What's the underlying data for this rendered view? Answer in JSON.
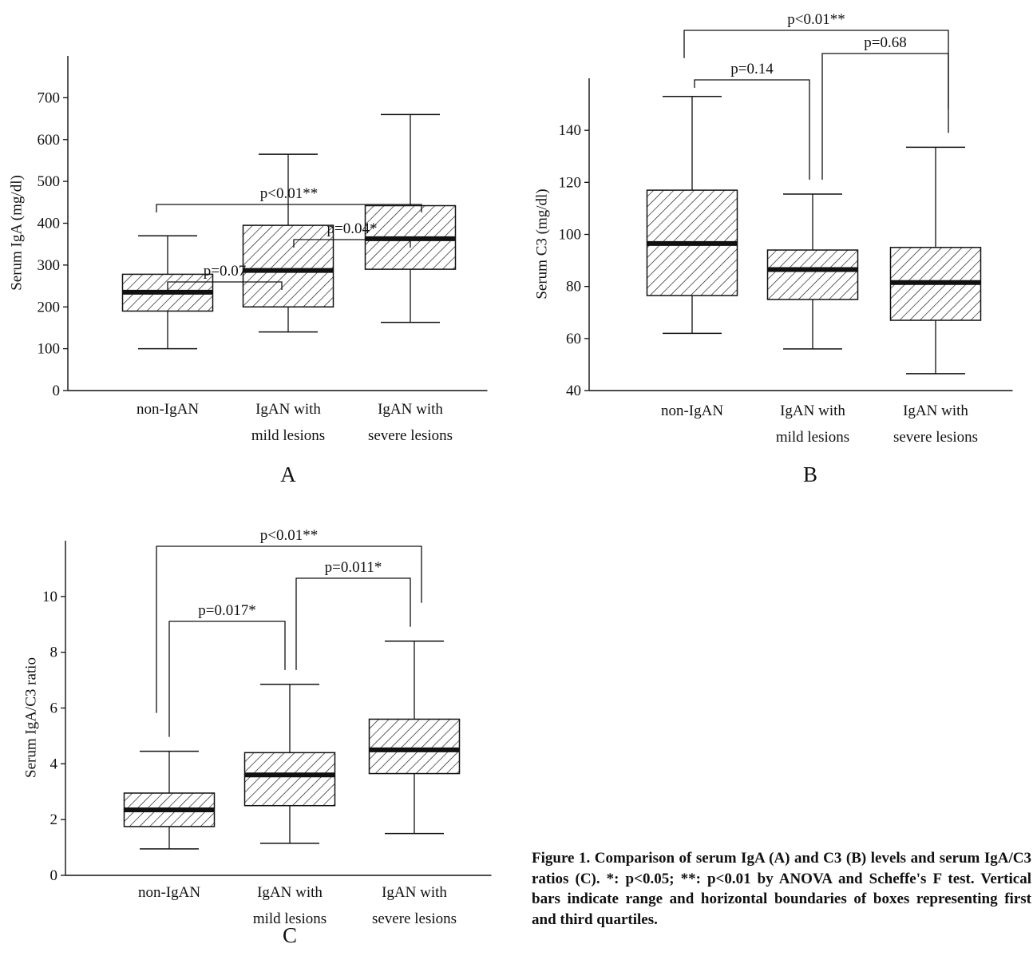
{
  "caption": "Figure 1.  Comparison of serum IgA (A) and C3 (B) levels and serum IgA/C3 ratios (C). *: p<0.05; **: p<0.01 by ANOVA and Scheffe's F test. Vertical bars indicate range and horizontal boundaries of boxes representing first and third quartiles.",
  "chart_data": [
    {
      "panel": "A",
      "type": "box",
      "ylabel": "Serum IgA (mg/dl)",
      "ylim": [
        0,
        800
      ],
      "yticks": [
        0,
        100,
        200,
        300,
        400,
        500,
        600,
        700
      ],
      "categories": [
        [
          "non-IgAN"
        ],
        [
          "IgAN with",
          "mild lesions"
        ],
        [
          "IgAN with",
          "severe lesions"
        ]
      ],
      "boxes": [
        {
          "min": 100,
          "q1": 190,
          "median": 235,
          "q3": 278,
          "max": 370
        },
        {
          "min": 140,
          "q1": 200,
          "median": 287,
          "q3": 395,
          "max": 565
        },
        {
          "min": 163,
          "q1": 290,
          "median": 363,
          "q3": 442,
          "max": 660
        }
      ],
      "comparisons": [
        {
          "from": 0,
          "to": 1,
          "label": "p=0.07"
        },
        {
          "from": 1,
          "to": 2,
          "label": "p=0.04*"
        },
        {
          "from": 0,
          "to": 2,
          "label": "p<0.01**"
        }
      ]
    },
    {
      "panel": "B",
      "type": "box",
      "ylabel": "Serum C3 (mg/dl)",
      "ylim": [
        40,
        160
      ],
      "yticks": [
        40,
        60,
        80,
        100,
        120,
        140
      ],
      "categories": [
        [
          "non-IgAN"
        ],
        [
          "IgAN with",
          "mild lesions"
        ],
        [
          "IgAN with",
          "severe lesions"
        ]
      ],
      "boxes": [
        {
          "min": 62,
          "q1": 76.5,
          "median": 96.5,
          "q3": 117,
          "max": 153
        },
        {
          "min": 56,
          "q1": 75,
          "median": 86.5,
          "q3": 94,
          "max": 115.5
        },
        {
          "min": 46.5,
          "q1": 67,
          "median": 81.5,
          "q3": 95,
          "max": 133.5
        }
      ],
      "comparisons": [
        {
          "from": 0,
          "to": 1,
          "label": "p=0.14"
        },
        {
          "from": 1,
          "to": 2,
          "label": "p=0.68"
        },
        {
          "from": 0,
          "to": 2,
          "label": "p<0.01**"
        }
      ]
    },
    {
      "panel": "C",
      "type": "box",
      "ylabel": "Serum IgA/C3 ratio",
      "ylim": [
        0,
        12
      ],
      "yticks": [
        0,
        2,
        4,
        6,
        8,
        10
      ],
      "categories": [
        [
          "non-IgAN"
        ],
        [
          "IgAN with",
          "mild lesions"
        ],
        [
          "IgAN with",
          "severe lesions"
        ]
      ],
      "boxes": [
        {
          "min": 0.95,
          "q1": 1.75,
          "median": 2.35,
          "q3": 2.95,
          "max": 4.45
        },
        {
          "min": 1.15,
          "q1": 2.5,
          "median": 3.6,
          "q3": 4.4,
          "max": 6.85
        },
        {
          "min": 1.5,
          "q1": 3.65,
          "median": 4.5,
          "q3": 5.6,
          "max": 8.4
        }
      ],
      "comparisons": [
        {
          "from": 0,
          "to": 1,
          "label": "p=0.017*"
        },
        {
          "from": 1,
          "to": 2,
          "label": "p=0.011*"
        },
        {
          "from": 0,
          "to": 2,
          "label": "p<0.01**"
        }
      ]
    }
  ]
}
